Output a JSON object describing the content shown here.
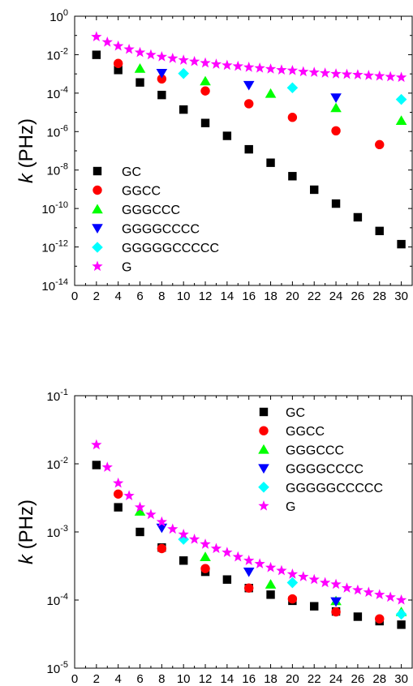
{
  "chart_data": [
    {
      "type": "scatter",
      "ylabel_italic": "k",
      "ylabel_rest": " (PHz)",
      "xlabel": "",
      "xlim": [
        0,
        31
      ],
      "ylim_log10": [
        -14,
        0
      ],
      "y_scale": "log",
      "xticks": [
        0,
        2,
        4,
        6,
        8,
        10,
        12,
        14,
        16,
        18,
        20,
        22,
        24,
        26,
        28,
        30
      ],
      "yticks": [
        {
          "mant": "10",
          "exp": "0"
        },
        {
          "mant": "10",
          "exp": "-2"
        },
        {
          "mant": "10",
          "exp": "-4"
        },
        {
          "mant": "10",
          "exp": "-6"
        },
        {
          "mant": "10",
          "exp": "-8"
        },
        {
          "mant": "10",
          "exp": "-10"
        },
        {
          "mant": "10",
          "exp": "-12"
        },
        {
          "mant": "10",
          "exp": "-14"
        }
      ],
      "legend_position": "bottom-left",
      "series": [
        {
          "name": "GC",
          "color": "#000000",
          "marker": "square",
          "x": [
            2,
            4,
            6,
            8,
            10,
            12,
            14,
            16,
            18,
            20,
            22,
            24,
            26,
            28,
            30
          ],
          "y": [
            0.0098,
            0.0016,
            0.00036,
            8e-05,
            1.4e-05,
            2.8e-06,
            6e-07,
            1.2e-07,
            2.4e-08,
            4.8e-09,
            9.5e-10,
            1.8e-10,
            3.5e-11,
            6.8e-12,
            1.4e-12
          ]
        },
        {
          "name": "GGCC",
          "color": "#ff0000",
          "marker": "circle",
          "x": [
            4,
            8,
            12,
            16,
            20,
            24,
            28
          ],
          "y": [
            0.0035,
            0.00055,
            0.00013,
            2.8e-05,
            5.5e-06,
            1.1e-06,
            2.1e-07
          ]
        },
        {
          "name": "GGGCCC",
          "color": "#00ff00",
          "marker": "triangle-up",
          "x": [
            6,
            12,
            18,
            24,
            30
          ],
          "y": [
            0.0019,
            0.00042,
            9.5e-05,
            1.7e-05,
            3.7e-06
          ]
        },
        {
          "name": "GGGGCCCC",
          "color": "#0000ff",
          "marker": "triangle-down",
          "x": [
            8,
            16,
            24
          ],
          "y": [
            0.0011,
            0.00026,
            5.8e-05
          ]
        },
        {
          "name": "GGGGGCCCCC",
          "color": "#00ffff",
          "marker": "diamond",
          "x": [
            10,
            20,
            30
          ],
          "y": [
            0.00105,
            0.00019,
            4.7e-05
          ]
        },
        {
          "name": "G",
          "color": "#ff00ff",
          "marker": "star",
          "x": [
            2,
            3,
            4,
            5,
            6,
            7,
            8,
            9,
            10,
            11,
            12,
            13,
            14,
            15,
            16,
            17,
            18,
            19,
            20,
            21,
            22,
            23,
            24,
            25,
            26,
            27,
            28,
            29,
            30
          ],
          "y": [
            0.085,
            0.045,
            0.028,
            0.019,
            0.013,
            0.0098,
            0.0078,
            0.0064,
            0.0052,
            0.0044,
            0.0037,
            0.0032,
            0.0028,
            0.0025,
            0.0022,
            0.002,
            0.0018,
            0.0016,
            0.0015,
            0.0013,
            0.0012,
            0.0011,
            0.001,
            0.00095,
            0.0009,
            0.00083,
            0.00077,
            0.00071,
            0.00066
          ]
        }
      ]
    },
    {
      "type": "scatter",
      "ylabel_italic": "k",
      "ylabel_rest": " (PHz)",
      "xlabel": "",
      "xlim": [
        0,
        31
      ],
      "ylim_log10": [
        -5,
        -1
      ],
      "y_scale": "log",
      "xticks": [
        0,
        2,
        4,
        6,
        8,
        10,
        12,
        14,
        16,
        18,
        20,
        22,
        24,
        26,
        28,
        30
      ],
      "yticks": [
        {
          "mant": "10",
          "exp": "-1"
        },
        {
          "mant": "10",
          "exp": "-2"
        },
        {
          "mant": "10",
          "exp": "-3"
        },
        {
          "mant": "10",
          "exp": "-4"
        },
        {
          "mant": "10",
          "exp": "-5"
        }
      ],
      "legend_position": "top-right",
      "series": [
        {
          "name": "GC",
          "color": "#000000",
          "marker": "square",
          "x": [
            2,
            4,
            6,
            8,
            10,
            12,
            14,
            16,
            18,
            20,
            22,
            24,
            26,
            28,
            30
          ],
          "y": [
            0.0096,
            0.0023,
            0.001,
            0.00059,
            0.00038,
            0.00026,
            0.0002,
            0.00015,
            0.00012,
            9.75e-05,
            8.1e-05,
            6.8e-05,
            5.7e-05,
            4.9e-05,
            4.35e-05
          ]
        },
        {
          "name": "GGCC",
          "color": "#ff0000",
          "marker": "circle",
          "x": [
            4,
            8,
            12,
            16,
            20,
            24,
            28
          ],
          "y": [
            0.0036,
            0.00057,
            0.00029,
            0.00015,
            0.000104,
            6.7e-05,
            5.3e-05
          ]
        },
        {
          "name": "GGGCCC",
          "color": "#00ff00",
          "marker": "triangle-up",
          "x": [
            6,
            12,
            18,
            24,
            30
          ],
          "y": [
            0.002,
            0.00043,
            0.00017,
            9.7e-05,
            6.7e-05
          ]
        },
        {
          "name": "GGGGCCCC",
          "color": "#0000ff",
          "marker": "triangle-down",
          "x": [
            8,
            16,
            24
          ],
          "y": [
            0.00115,
            0.00026,
            9.5e-05
          ]
        },
        {
          "name": "GGGGGCCCCC",
          "color": "#00ffff",
          "marker": "diamond",
          "x": [
            10,
            20,
            30
          ],
          "y": [
            0.00078,
            0.00018,
            6.2e-05
          ]
        },
        {
          "name": "G",
          "color": "#ff00ff",
          "marker": "star",
          "x": [
            2,
            3,
            4,
            5,
            6,
            7,
            8,
            9,
            10,
            11,
            12,
            13,
            14,
            15,
            16,
            17,
            18,
            19,
            20,
            21,
            22,
            23,
            24,
            25,
            26,
            27,
            28,
            29,
            30
          ],
          "y": [
            0.019,
            0.0089,
            0.0052,
            0.0034,
            0.0023,
            0.0018,
            0.0014,
            0.0011,
            0.00092,
            0.00078,
            0.00066,
            0.00057,
            0.0005,
            0.00043,
            0.00038,
            0.00034,
            0.0003,
            0.00027,
            0.00024,
            0.00022,
            0.0002,
            0.00018,
            0.00017,
            0.00015,
            0.00014,
            0.00013,
            0.00012,
            0.00011,
            0.0001
          ]
        }
      ]
    }
  ]
}
